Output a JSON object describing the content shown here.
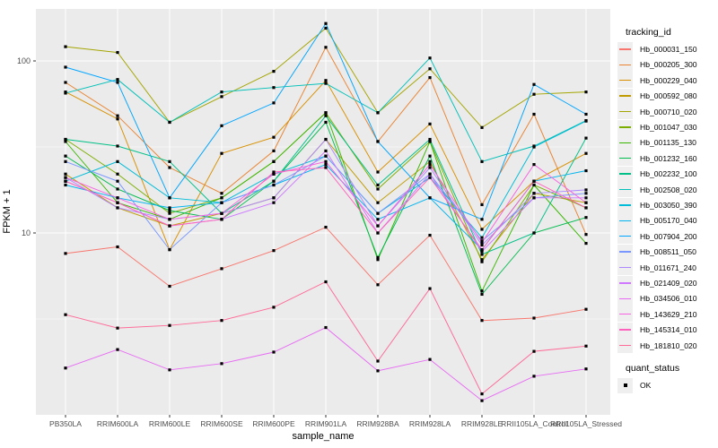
{
  "figure": {
    "y_axis": {
      "title": "FPKM + 1",
      "ticks": [
        {
          "label": "100",
          "value": 100
        },
        {
          "label": "10",
          "value": 10
        }
      ]
    },
    "x_axis": {
      "title": "sample_name"
    },
    "legend": {
      "tracking_title": "tracking_id",
      "quant_title": "quant_status",
      "quant_items": [
        {
          "label": "OK",
          "marker": "black-square"
        }
      ]
    },
    "colors": {
      "panel_bg": "#EBEBEB",
      "grid_major": "#FFFFFF",
      "grid_minor": "#FFFFFF",
      "axis_text": "#4D4D4D",
      "marker": "#000000"
    }
  },
  "chart_data": {
    "type": "line",
    "title": "",
    "xlabel": "sample_name",
    "ylabel": "FPKM + 1",
    "y_scale": "log10",
    "ylim": [
      0.9,
      200
    ],
    "y_major_breaks": [
      10,
      100
    ],
    "y_minor_breaks": [
      3.162,
      31.62
    ],
    "grid": true,
    "legend_position": "right",
    "marker": "black-square (quant_status = OK)",
    "categories": [
      "PB350LA",
      "RRIM600LA",
      "RRIM600LE",
      "RRIM600SE",
      "RRIM600PE",
      "RRIM901LA",
      "RRIM928BA",
      "RRIM928LA",
      "RRIM928LE",
      "RRII105LA_Control",
      "RRII105LA_Stressed"
    ],
    "series": [
      {
        "name": "Hb_000031_150",
        "color": "#F8766D",
        "values": [
          7.6,
          8.3,
          4.9,
          6.2,
          7.9,
          10.8,
          5.0,
          9.7,
          3.1,
          3.2,
          3.6
        ]
      },
      {
        "name": "Hb_000205_300",
        "color": "#EA8331",
        "values": [
          75,
          48,
          24,
          17,
          30,
          120,
          34,
          80,
          14.6,
          49,
          9.8
        ]
      },
      {
        "name": "Hb_000229_040",
        "color": "#D89000",
        "values": [
          66,
          46,
          8.0,
          29,
          36,
          77,
          22.6,
          43,
          10.5,
          20,
          29
        ]
      },
      {
        "name": "Hb_000592_080",
        "color": "#C09B00",
        "values": [
          22,
          14,
          11,
          13,
          16,
          35,
          15,
          26,
          7.0,
          17,
          15
        ]
      },
      {
        "name": "Hb_000710_020",
        "color": "#A3A500",
        "values": [
          121,
          112,
          44,
          62,
          87,
          155,
          50,
          90,
          41,
          64,
          66
        ]
      },
      {
        "name": "Hb_001047_030",
        "color": "#7CAE00",
        "values": [
          35,
          22,
          13,
          16,
          26,
          50,
          18,
          34,
          6.8,
          19,
          14
        ]
      },
      {
        "name": "Hb_001135_130",
        "color": "#39B600",
        "values": [
          34,
          15,
          12,
          16,
          26,
          50,
          7.0,
          34,
          4.6,
          19,
          8.7
        ]
      },
      {
        "name": "Hb_001232_160",
        "color": "#00BB4E",
        "values": [
          28,
          18,
          13.5,
          12,
          20,
          44,
          7.2,
          28,
          4.4,
          10,
          12.3
        ]
      },
      {
        "name": "Hb_002232_100",
        "color": "#00C087",
        "values": [
          35,
          32,
          26,
          13,
          20,
          48,
          19,
          35,
          7.5,
          10,
          35.6
        ]
      },
      {
        "name": "Hb_002508_020",
        "color": "#00C0B8",
        "values": [
          65,
          78,
          44,
          66,
          70,
          74,
          50,
          104,
          26,
          32,
          45
        ]
      },
      {
        "name": "Hb_003050_390",
        "color": "#00BCD8",
        "values": [
          20,
          26,
          16,
          15,
          22,
          28,
          13,
          21,
          9.4,
          31.6,
          44.7
        ]
      },
      {
        "name": "Hb_005170_040",
        "color": "#00B4EF",
        "values": [
          19,
          16,
          14,
          15,
          19,
          25,
          12,
          16,
          8.0,
          20,
          23
        ]
      },
      {
        "name": "Hb_007904_200",
        "color": "#00A5FF",
        "values": [
          92,
          75,
          16,
          42,
          57,
          165,
          34,
          16,
          12,
          73,
          49
        ]
      },
      {
        "name": "Hb_008511_050",
        "color": "#7997FF",
        "values": [
          26,
          20,
          8.0,
          15,
          19,
          28,
          13,
          22,
          9.0,
          16,
          17
        ]
      },
      {
        "name": "Hb_011671_240",
        "color": "#AC88FF",
        "values": [
          21,
          14,
          12,
          13,
          16,
          35,
          11,
          24,
          8.5,
          17,
          17.8
        ]
      },
      {
        "name": "Hb_021409_020",
        "color": "#CF78FF",
        "values": [
          20,
          15,
          11,
          12,
          15,
          30,
          10,
          22,
          7.8,
          16,
          16
        ]
      },
      {
        "name": "Hb_034506_010",
        "color": "#E76BF3",
        "values": [
          1.64,
          2.1,
          1.6,
          1.74,
          2.03,
          2.82,
          1.58,
          1.84,
          1.06,
          1.47,
          1.62
        ]
      },
      {
        "name": "Hb_143629_210",
        "color": "#F763E0",
        "values": [
          21,
          16,
          12,
          13,
          22,
          26,
          11,
          25,
          8.8,
          25,
          15
        ]
      },
      {
        "name": "Hb_145314_010",
        "color": "#FF62BC",
        "values": [
          20,
          15,
          11,
          12,
          22.6,
          24,
          10,
          21,
          8.0,
          20,
          14
        ]
      },
      {
        "name": "Hb_181810_020",
        "color": "#FF6A98",
        "values": [
          3.35,
          2.8,
          2.9,
          3.1,
          3.7,
          5.2,
          1.8,
          4.75,
          1.16,
          2.05,
          2.2
        ]
      }
    ]
  }
}
